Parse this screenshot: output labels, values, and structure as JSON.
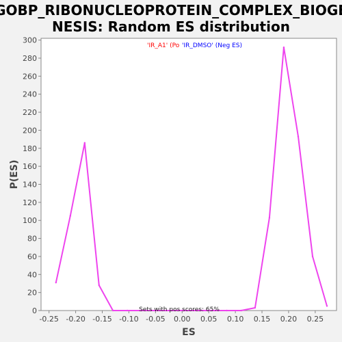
{
  "chart_data": {
    "type": "line",
    "title_lines": [
      "GOBP_RIBONUCLEOPROTEIN_COMPLEX_BIOGE",
      "NESIS: Random ES distribution"
    ],
    "xlabel": "ES",
    "ylabel": "P(ES)",
    "xlim": [
      -0.265,
      0.29
    ],
    "ylim": [
      0,
      302
    ],
    "xticks": [
      -0.25,
      -0.2,
      -0.15,
      -0.1,
      -0.05,
      0.0,
      0.05,
      0.1,
      0.15,
      0.2,
      0.25
    ],
    "xtick_labels": [
      "-0.25",
      "-0.20",
      "-0.15",
      "-0.10",
      "-0.05",
      "0.00",
      "0.05",
      "0.10",
      "0.15",
      "0.20",
      "0.25"
    ],
    "yticks": [
      0,
      20,
      40,
      60,
      80,
      100,
      120,
      140,
      160,
      180,
      200,
      220,
      240,
      260,
      280,
      300
    ],
    "grid": false,
    "legend": [
      {
        "text": "'IR_A1' (Po",
        "color": "#ff0000"
      },
      {
        "text": "'IR_DMSO' (Neg ES)",
        "color": "#0000ff"
      }
    ],
    "legend_position": "top-center",
    "annotation": "Sets with pos scores: 65%",
    "series": [
      {
        "color": "#ee44ee",
        "x": [
          -0.237,
          -0.21,
          -0.183,
          -0.156,
          -0.13,
          -0.103,
          -0.076,
          -0.05,
          -0.023,
          0.003,
          0.03,
          0.057,
          0.084,
          0.111,
          0.137,
          0.164,
          0.191,
          0.218,
          0.245,
          0.272
        ],
        "y": [
          31,
          105,
          186,
          28,
          0,
          0,
          0,
          0,
          0,
          0,
          0,
          0,
          0,
          0,
          3,
          103,
          292,
          193,
          60,
          5
        ]
      }
    ]
  }
}
